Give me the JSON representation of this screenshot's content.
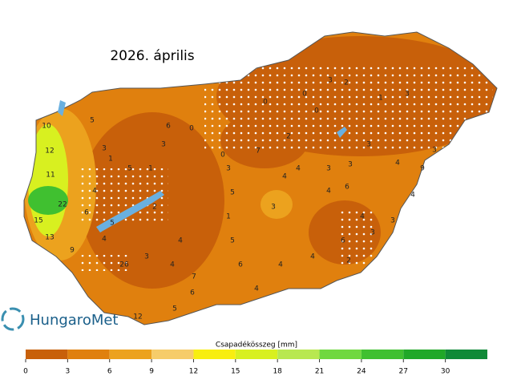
{
  "title": "2026. április",
  "logo": "HungaroMet",
  "colorbar": {
    "label": "Csapadékösszeg [mm]",
    "ticks": [
      0,
      3,
      6,
      9,
      12,
      15,
      18,
      21,
      24,
      27,
      30
    ],
    "colors": [
      "#c8600a",
      "#e0800e",
      "#eca21e",
      "#f6cc6a",
      "#f8ee10",
      "#d8f020",
      "#b8e850",
      "#70d840",
      "#40c030",
      "#20a828",
      "#108a38"
    ]
  },
  "station_values": [
    10,
    12,
    11,
    22,
    15,
    13,
    9,
    5,
    6,
    3,
    1,
    5,
    1,
    3,
    4,
    6,
    2,
    5,
    4,
    26,
    3,
    4,
    4,
    7,
    6,
    12,
    5,
    3,
    5,
    1,
    5,
    6,
    4,
    0,
    0,
    7,
    4,
    3,
    4,
    3,
    4,
    6,
    3,
    4,
    6,
    2,
    9,
    4,
    3,
    0,
    0,
    2,
    3,
    0,
    1,
    3,
    3,
    4,
    2,
    3,
    4,
    4,
    3
  ]
}
